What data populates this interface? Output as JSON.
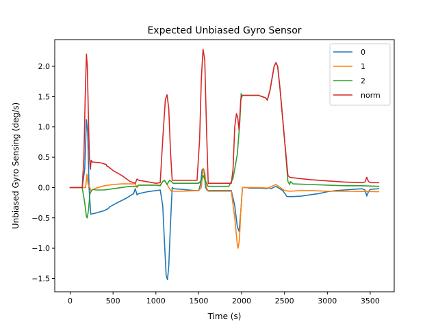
{
  "chart_data": {
    "type": "line",
    "title": "Expected Unbiased Gyro Sensor",
    "xlabel": "Time (s)",
    "ylabel": "Unbiased Gyro Sensing (deg/s)",
    "xlim": [
      -180,
      3780
    ],
    "ylim": [
      -1.72,
      2.44
    ],
    "xticks": [
      0,
      500,
      1000,
      1500,
      2000,
      2500,
      3000,
      3500
    ],
    "yticks": [
      -1.5,
      -1.0,
      -0.5,
      0.0,
      0.5,
      1.0,
      1.5,
      2.0
    ],
    "xtick_labels": [
      "0",
      "500",
      "1000",
      "1500",
      "2000",
      "2500",
      "3000",
      "3500"
    ],
    "ytick_labels": [
      "−1.5",
      "−1.0",
      "−0.5",
      "0.0",
      "0.5",
      "1.0",
      "1.5",
      "2.0"
    ],
    "grid": false,
    "legend_position": "top-right",
    "series": [
      {
        "name": "0",
        "color": "#1f77b4",
        "points": [
          [
            0,
            0
          ],
          [
            140,
            0
          ],
          [
            170,
            0.3
          ],
          [
            190,
            1.12
          ],
          [
            205,
            0.9
          ],
          [
            220,
            0.0
          ],
          [
            240,
            -0.44
          ],
          [
            300,
            -0.42
          ],
          [
            400,
            -0.38
          ],
          [
            440,
            -0.35
          ],
          [
            460,
            -0.32
          ],
          [
            550,
            -0.25
          ],
          [
            650,
            -0.18
          ],
          [
            740,
            -0.1
          ],
          [
            760,
            -0.02
          ],
          [
            780,
            -0.12
          ],
          [
            800,
            -0.1
          ],
          [
            900,
            -0.07
          ],
          [
            1000,
            -0.05
          ],
          [
            1050,
            -0.04
          ],
          [
            1080,
            -0.3
          ],
          [
            1100,
            -0.9
          ],
          [
            1120,
            -1.45
          ],
          [
            1135,
            -1.52
          ],
          [
            1150,
            -1.3
          ],
          [
            1170,
            -0.6
          ],
          [
            1190,
            0.0
          ],
          [
            1210,
            -0.02
          ],
          [
            1300,
            -0.03
          ],
          [
            1450,
            -0.05
          ],
          [
            1500,
            -0.05
          ],
          [
            1520,
            0.05
          ],
          [
            1540,
            0.3
          ],
          [
            1560,
            0.3
          ],
          [
            1580,
            0.0
          ],
          [
            1600,
            -0.05
          ],
          [
            1700,
            -0.05
          ],
          [
            1880,
            -0.05
          ],
          [
            1920,
            -0.3
          ],
          [
            1950,
            -0.65
          ],
          [
            1970,
            -0.72
          ],
          [
            1990,
            -0.4
          ],
          [
            2010,
            0.0
          ],
          [
            2050,
            0.0
          ],
          [
            2100,
            -0.01
          ],
          [
            2200,
            -0.01
          ],
          [
            2300,
            -0.02
          ],
          [
            2320,
            0.0
          ],
          [
            2340,
            -0.02
          ],
          [
            2400,
            0.02
          ],
          [
            2480,
            -0.05
          ],
          [
            2530,
            -0.15
          ],
          [
            2600,
            -0.15
          ],
          [
            2700,
            -0.14
          ],
          [
            2800,
            -0.12
          ],
          [
            2900,
            -0.1
          ],
          [
            3000,
            -0.07
          ],
          [
            3100,
            -0.05
          ],
          [
            3200,
            -0.04
          ],
          [
            3300,
            -0.03
          ],
          [
            3400,
            -0.02
          ],
          [
            3440,
            -0.04
          ],
          [
            3460,
            -0.14
          ],
          [
            3480,
            -0.07
          ],
          [
            3500,
            -0.03
          ],
          [
            3600,
            -0.02
          ]
        ]
      },
      {
        "name": "1",
        "color": "#ff7f0e",
        "points": [
          [
            0,
            0
          ],
          [
            180,
            0
          ],
          [
            195,
            0.22
          ],
          [
            210,
            0.05
          ],
          [
            230,
            0.0
          ],
          [
            240,
            -0.05
          ],
          [
            300,
            -0.01
          ],
          [
            400,
            0.03
          ],
          [
            500,
            0.05
          ],
          [
            600,
            0.06
          ],
          [
            700,
            0.06
          ],
          [
            760,
            0.06
          ],
          [
            780,
            0.0
          ],
          [
            800,
            0.04
          ],
          [
            900,
            0.04
          ],
          [
            1000,
            0.04
          ],
          [
            1050,
            0.04
          ],
          [
            1080,
            0.1
          ],
          [
            1100,
            0.12
          ],
          [
            1120,
            0.08
          ],
          [
            1150,
            0.0
          ],
          [
            1180,
            -0.06
          ],
          [
            1300,
            -0.06
          ],
          [
            1500,
            -0.05
          ],
          [
            1530,
            0.0
          ],
          [
            1550,
            0.32
          ],
          [
            1570,
            0.25
          ],
          [
            1590,
            0.0
          ],
          [
            1610,
            -0.06
          ],
          [
            1880,
            -0.06
          ],
          [
            1920,
            -0.5
          ],
          [
            1950,
            -0.95
          ],
          [
            1960,
            -1.0
          ],
          [
            1975,
            -0.85
          ],
          [
            1990,
            -0.4
          ],
          [
            2010,
            0.0
          ],
          [
            2200,
            0.0
          ],
          [
            2300,
            -0.01
          ],
          [
            2400,
            0.05
          ],
          [
            2450,
            0.0
          ],
          [
            2500,
            -0.05
          ],
          [
            2560,
            -0.06
          ],
          [
            2700,
            -0.05
          ],
          [
            2800,
            -0.05
          ],
          [
            3000,
            -0.06
          ],
          [
            3200,
            -0.06
          ],
          [
            3600,
            -0.07
          ]
        ]
      },
      {
        "name": "2",
        "color": "#2ca02c",
        "points": [
          [
            0,
            0
          ],
          [
            140,
            0
          ],
          [
            170,
            -0.25
          ],
          [
            190,
            -0.48
          ],
          [
            200,
            -0.5
          ],
          [
            215,
            -0.35
          ],
          [
            230,
            -0.1
          ],
          [
            260,
            -0.03
          ],
          [
            300,
            -0.04
          ],
          [
            400,
            -0.04
          ],
          [
            500,
            -0.02
          ],
          [
            600,
            0.0
          ],
          [
            700,
            0.02
          ],
          [
            780,
            0.02
          ],
          [
            800,
            0.04
          ],
          [
            900,
            0.04
          ],
          [
            1000,
            0.04
          ],
          [
            1050,
            0.03
          ],
          [
            1080,
            0.1
          ],
          [
            1100,
            0.12
          ],
          [
            1130,
            0.05
          ],
          [
            1160,
            0.12
          ],
          [
            1180,
            0.1
          ],
          [
            1200,
            0.07
          ],
          [
            1300,
            0.07
          ],
          [
            1500,
            0.07
          ],
          [
            1530,
            0.12
          ],
          [
            1550,
            0.2
          ],
          [
            1580,
            0.1
          ],
          [
            1610,
            0.02
          ],
          [
            1700,
            0.02
          ],
          [
            1850,
            0.02
          ],
          [
            1900,
            0.15
          ],
          [
            1950,
            0.55
          ],
          [
            1980,
            1.1
          ],
          [
            1995,
            1.55
          ],
          [
            2000,
            1.52
          ],
          [
            2200,
            1.52
          ],
          [
            2280,
            1.48
          ],
          [
            2300,
            1.44
          ],
          [
            2330,
            1.6
          ],
          [
            2380,
            2.0
          ],
          [
            2400,
            2.06
          ],
          [
            2420,
            2.0
          ],
          [
            2450,
            1.6
          ],
          [
            2500,
            0.8
          ],
          [
            2540,
            0.1
          ],
          [
            2560,
            0.05
          ],
          [
            2570,
            0.1
          ],
          [
            2600,
            0.06
          ],
          [
            2800,
            0.05
          ],
          [
            3000,
            0.04
          ],
          [
            3200,
            0.03
          ],
          [
            3400,
            0.03
          ],
          [
            3600,
            0.02
          ]
        ]
      },
      {
        "name": "norm",
        "color": "#d62728",
        "points": [
          [
            0,
            0
          ],
          [
            140,
            0
          ],
          [
            160,
            0.5
          ],
          [
            175,
            1.5
          ],
          [
            190,
            2.2
          ],
          [
            200,
            2.0
          ],
          [
            215,
            1.0
          ],
          [
            225,
            0.5
          ],
          [
            235,
            0.3
          ],
          [
            245,
            0.45
          ],
          [
            260,
            0.42
          ],
          [
            350,
            0.41
          ],
          [
            420,
            0.38
          ],
          [
            430,
            0.35
          ],
          [
            440,
            0.35
          ],
          [
            500,
            0.28
          ],
          [
            600,
            0.2
          ],
          [
            700,
            0.1
          ],
          [
            760,
            0.07
          ],
          [
            780,
            0.14
          ],
          [
            800,
            0.12
          ],
          [
            1000,
            0.07
          ],
          [
            1050,
            0.08
          ],
          [
            1080,
            0.8
          ],
          [
            1110,
            1.45
          ],
          [
            1130,
            1.53
          ],
          [
            1150,
            1.3
          ],
          [
            1170,
            0.6
          ],
          [
            1190,
            0.12
          ],
          [
            1300,
            0.12
          ],
          [
            1480,
            0.12
          ],
          [
            1510,
            0.8
          ],
          [
            1530,
            1.8
          ],
          [
            1550,
            2.28
          ],
          [
            1570,
            2.1
          ],
          [
            1590,
            1.0
          ],
          [
            1610,
            0.07
          ],
          [
            1880,
            0.07
          ],
          [
            1900,
            0.3
          ],
          [
            1920,
            1.0
          ],
          [
            1940,
            1.22
          ],
          [
            1955,
            1.15
          ],
          [
            1970,
            0.95
          ],
          [
            1990,
            1.45
          ],
          [
            2010,
            1.52
          ],
          [
            2200,
            1.52
          ],
          [
            2280,
            1.48
          ],
          [
            2300,
            1.44
          ],
          [
            2330,
            1.6
          ],
          [
            2380,
            2.0
          ],
          [
            2400,
            2.06
          ],
          [
            2420,
            2.0
          ],
          [
            2450,
            1.6
          ],
          [
            2500,
            0.8
          ],
          [
            2540,
            0.2
          ],
          [
            2560,
            0.17
          ],
          [
            2600,
            0.16
          ],
          [
            2800,
            0.13
          ],
          [
            3000,
            0.11
          ],
          [
            3200,
            0.09
          ],
          [
            3400,
            0.08
          ],
          [
            3440,
            0.09
          ],
          [
            3460,
            0.17
          ],
          [
            3480,
            0.1
          ],
          [
            3500,
            0.08
          ],
          [
            3600,
            0.08
          ]
        ]
      }
    ]
  }
}
